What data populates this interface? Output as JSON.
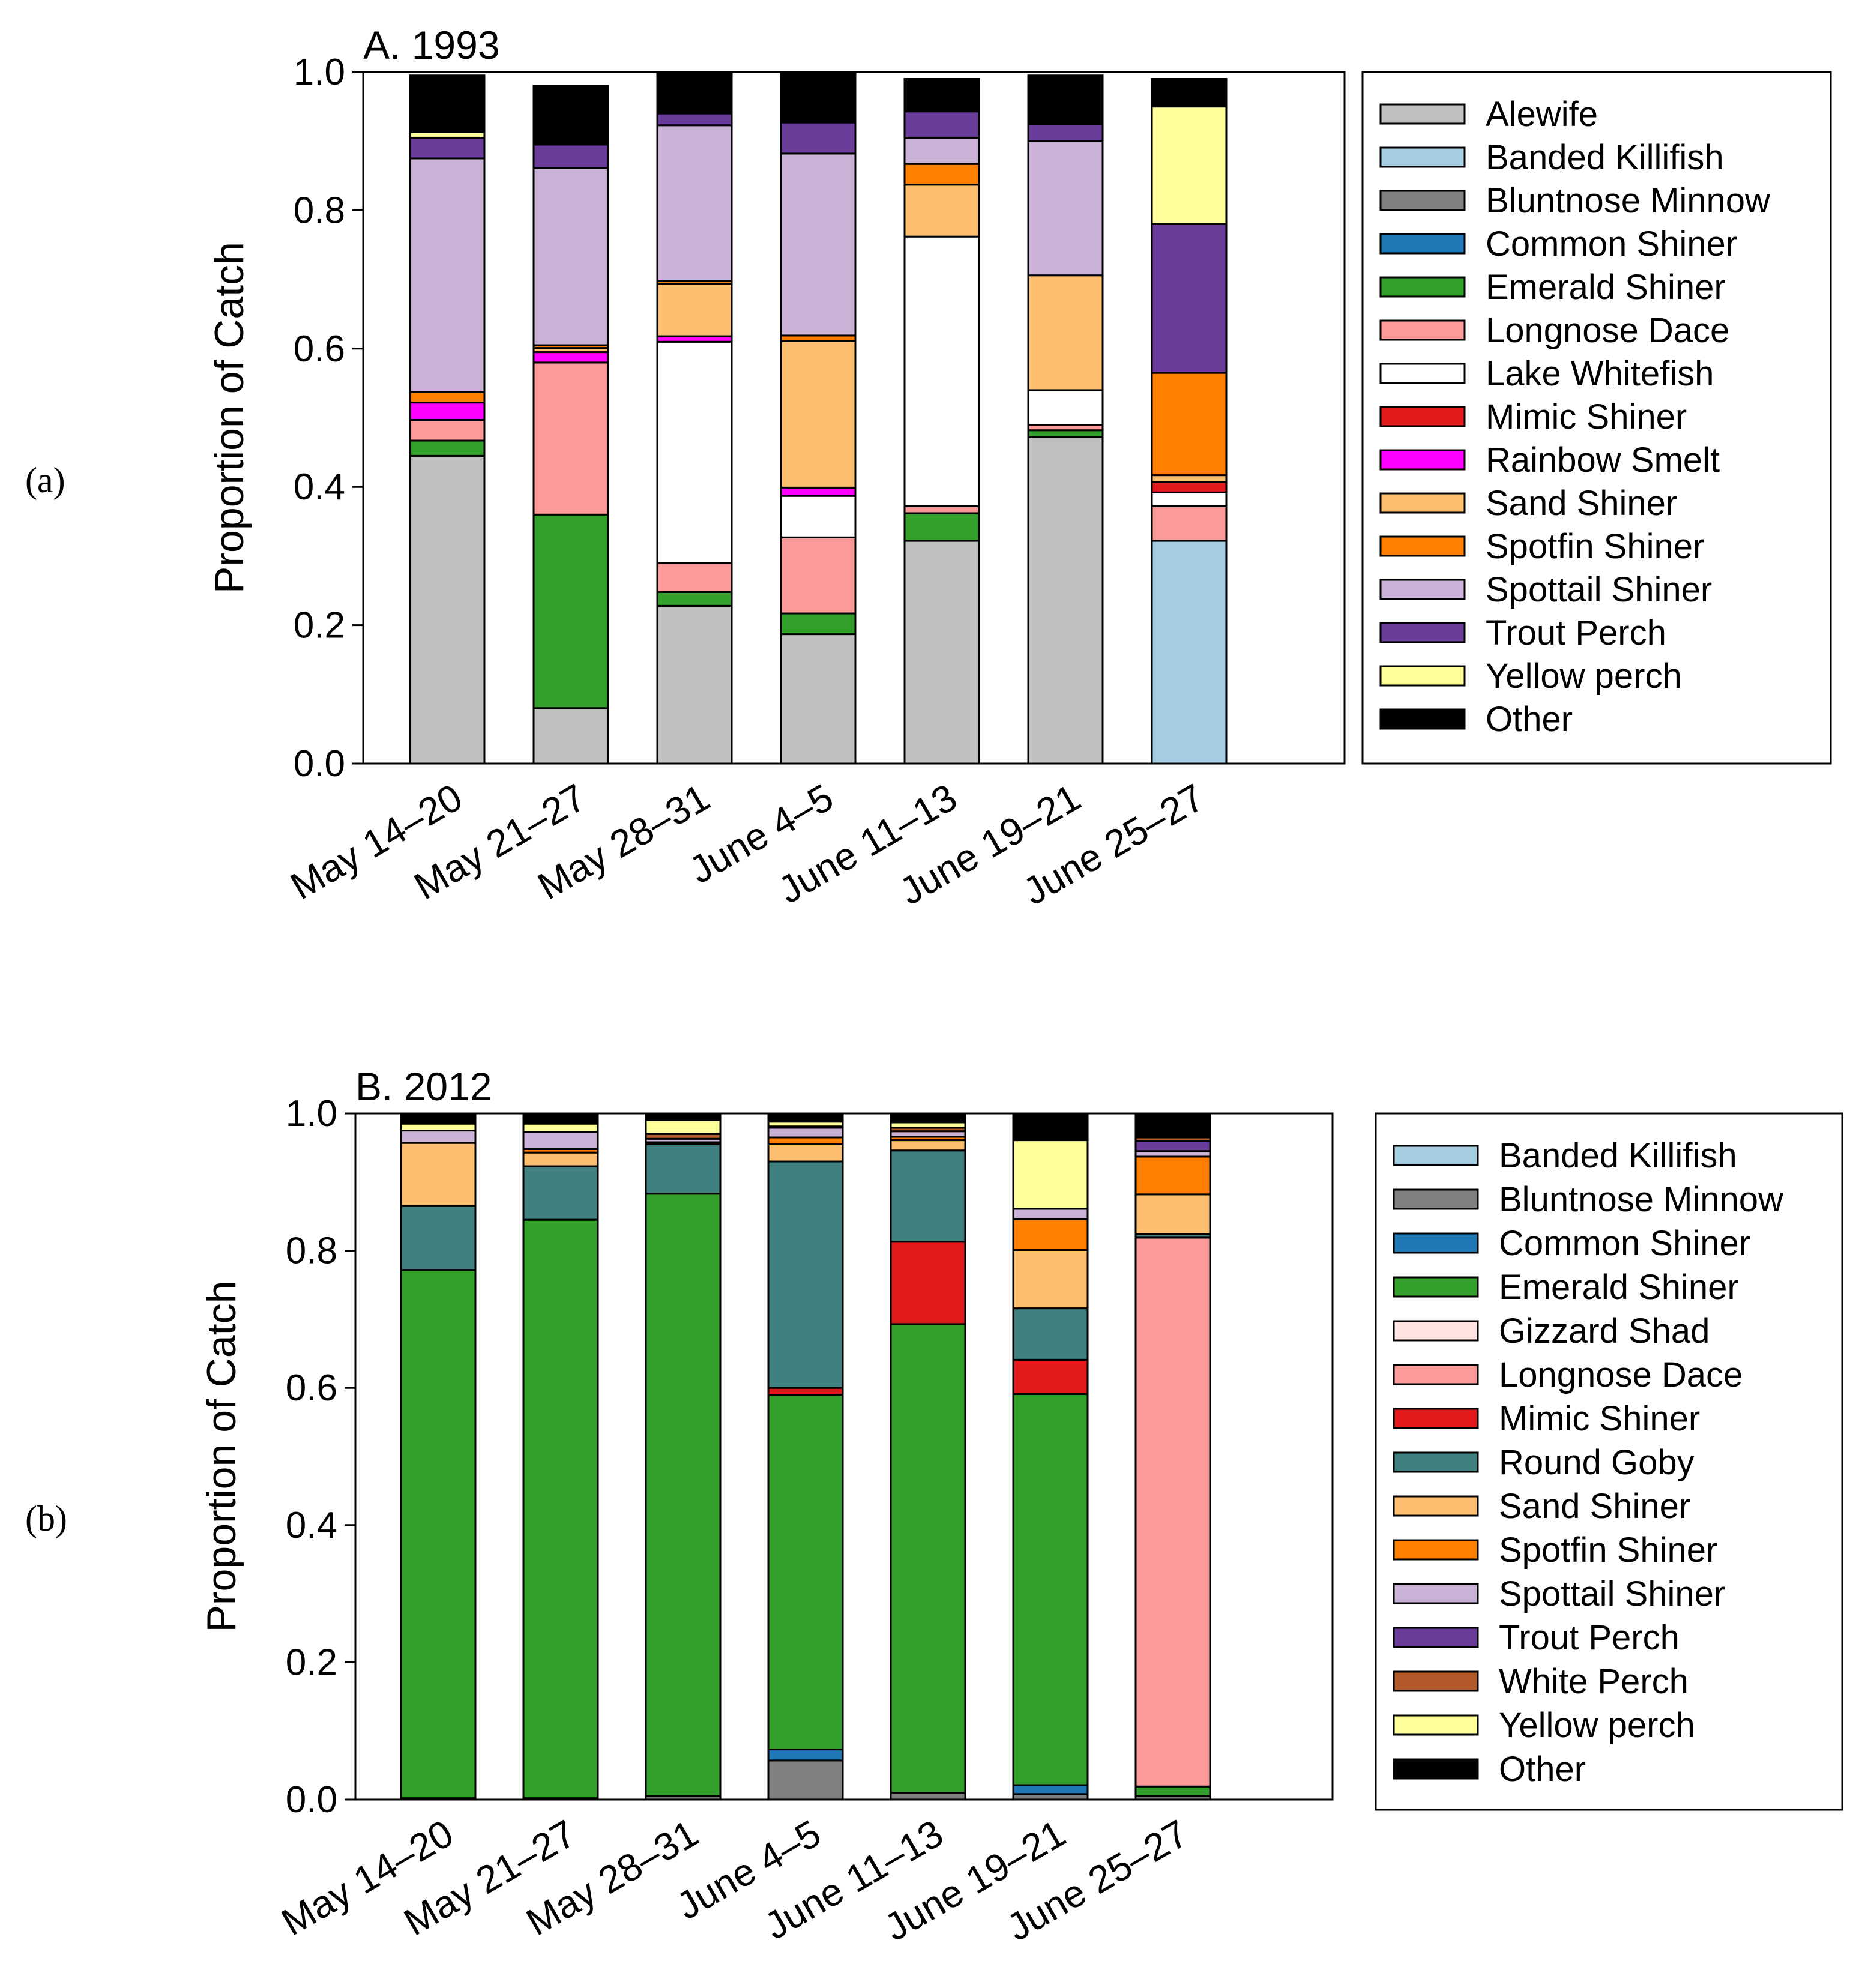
{
  "figure": {
    "panel_labels": [
      "(a)",
      "(b)"
    ],
    "colors": {
      "Alewife": "#c0c0c0",
      "Banded Killifish": "#a6cee3",
      "Bluntnose Minnow": "#808080",
      "Common Shiner": "#1f78b4",
      "Emerald Shiner": "#33a02c",
      "Longnose Dace": "#fb9a99",
      "Lake Whitefish": "#ffffff",
      "Mimic Shiner": "#e31a1c",
      "Rainbow Smelt": "#ff00ff",
      "Sand Shiner": "#fdbf6f",
      "Spotfin Shiner": "#ff7f00",
      "Spottail Shiner": "#cab2d6",
      "Trout Perch": "#6a3d9a",
      "Yellow perch": "#ffff99",
      "Other": "#000000",
      "Gizzard Shad": "#ffe4e1",
      "Round Goby": "#408080",
      "White Perch": "#b15928"
    }
  },
  "chart_data": [
    {
      "type": "bar",
      "stacked": true,
      "title": "A. 1993",
      "xlabel": "",
      "ylabel": "Proportion of Catch",
      "ylim": [
        0,
        1
      ],
      "yticks": [
        "0.0",
        "0.2",
        "0.4",
        "0.6",
        "0.8",
        "1.0"
      ],
      "categories": [
        "May 14–20",
        "May 21–27",
        "May 28–31",
        "June 4–5",
        "June 11–13",
        "June 19–21",
        "June 25–27"
      ],
      "legend": [
        "Alewife",
        "Banded Killifish",
        "Bluntnose Minnow",
        "Common Shiner",
        "Emerald Shiner",
        "Longnose Dace",
        "Lake Whitefish",
        "Mimic Shiner",
        "Rainbow Smelt",
        "Sand Shiner",
        "Spotfin Shiner",
        "Spottail Shiner",
        "Trout Perch",
        "Yellow perch",
        "Other"
      ],
      "series": [
        {
          "name": "Alewife",
          "values": [
            0.445,
            0.08,
            0.228,
            0.187,
            0.322,
            0.472,
            0
          ]
        },
        {
          "name": "Banded Killifish",
          "values": [
            0,
            0,
            0,
            0,
            0,
            0,
            0.322
          ]
        },
        {
          "name": "Bluntnose Minnow",
          "values": [
            0,
            0,
            0,
            0,
            0,
            0,
            0
          ]
        },
        {
          "name": "Common Shiner",
          "values": [
            0,
            0,
            0,
            0,
            0,
            0,
            0
          ]
        },
        {
          "name": "Emerald Shiner",
          "values": [
            0.022,
            0.28,
            0.02,
            0.03,
            0.04,
            0.01,
            0
          ]
        },
        {
          "name": "Longnose Dace",
          "values": [
            0.03,
            0.22,
            0.042,
            0.11,
            0.01,
            0.008,
            0.05
          ]
        },
        {
          "name": "Lake Whitefish",
          "values": [
            0,
            0,
            0.32,
            0.06,
            0.39,
            0.05,
            0.02
          ]
        },
        {
          "name": "Mimic Shiner",
          "values": [
            0,
            0,
            0,
            0,
            0,
            0,
            0.015
          ]
        },
        {
          "name": "Rainbow Smelt",
          "values": [
            0.025,
            0.015,
            0.008,
            0.012,
            0,
            0,
            0
          ]
        },
        {
          "name": "Sand Shiner",
          "values": [
            0,
            0.006,
            0.076,
            0.212,
            0.075,
            0.166,
            0.01
          ]
        },
        {
          "name": "Spotfin Shiner",
          "values": [
            0.015,
            0.004,
            0.004,
            0.008,
            0.03,
            0,
            0.148
          ]
        },
        {
          "name": "Spottail Shiner",
          "values": [
            0.338,
            0.256,
            0.225,
            0.263,
            0.038,
            0.194,
            0
          ]
        },
        {
          "name": "Trout Perch",
          "values": [
            0.03,
            0.034,
            0.017,
            0.045,
            0.038,
            0.025,
            0.215
          ]
        },
        {
          "name": "Yellow perch",
          "values": [
            0.008,
            0,
            0,
            0,
            0,
            0,
            0.17
          ]
        },
        {
          "name": "Other",
          "values": [
            0.082,
            0.085,
            0.06,
            0.073,
            0.047,
            0.07,
            0.04
          ]
        }
      ]
    },
    {
      "type": "bar",
      "stacked": true,
      "title": "B. 2012",
      "xlabel": "",
      "ylabel": "Proportion of Catch",
      "ylim": [
        0,
        1
      ],
      "yticks": [
        "0.0",
        "0.2",
        "0.4",
        "0.6",
        "0.8",
        "1.0"
      ],
      "categories": [
        "May 14–20",
        "May 21–27",
        "May 28–31",
        "June 4–5",
        "June 11–13",
        "June 19–21",
        "June 25–27"
      ],
      "legend": [
        "Banded Killifish",
        "Bluntnose Minnow",
        "Common Shiner",
        "Emerald Shiner",
        "Gizzard Shad",
        "Longnose Dace",
        "Mimic Shiner",
        "Round Goby",
        "Sand Shiner",
        "Spotfin Shiner",
        "Spottail Shiner",
        "Trout Perch",
        "White Perch",
        "Yellow perch",
        "Other"
      ],
      "series": [
        {
          "name": "Banded Killifish",
          "values": [
            0,
            0,
            0,
            0,
            0,
            0,
            0
          ]
        },
        {
          "name": "Bluntnose Minnow",
          "values": [
            0.002,
            0.002,
            0.005,
            0.057,
            0.01,
            0.008,
            0.005
          ]
        },
        {
          "name": "Common Shiner",
          "values": [
            0,
            0,
            0,
            0.016,
            0,
            0.013,
            0
          ]
        },
        {
          "name": "Emerald Shiner",
          "values": [
            0.77,
            0.843,
            0.878,
            0.517,
            0.683,
            0.57,
            0.014
          ]
        },
        {
          "name": "Gizzard Shad",
          "values": [
            0,
            0,
            0,
            0,
            0,
            0,
            0
          ]
        },
        {
          "name": "Longnose Dace",
          "values": [
            0,
            0,
            0,
            0,
            0,
            0,
            0.8
          ]
        },
        {
          "name": "Mimic Shiner",
          "values": [
            0,
            0,
            0,
            0.01,
            0.12,
            0.05,
            0
          ]
        },
        {
          "name": "Round Goby",
          "values": [
            0.093,
            0.078,
            0.072,
            0.33,
            0.133,
            0.075,
            0.005
          ]
        },
        {
          "name": "Sand Shiner",
          "values": [
            0.092,
            0.02,
            0,
            0.025,
            0.015,
            0.085,
            0.058
          ]
        },
        {
          "name": "Spotfin Shiner",
          "values": [
            0,
            0.005,
            0.003,
            0.01,
            0.005,
            0.045,
            0.055
          ]
        },
        {
          "name": "Spottail Shiner",
          "values": [
            0.018,
            0.025,
            0.005,
            0.014,
            0.008,
            0.015,
            0.008
          ]
        },
        {
          "name": "Trout Perch",
          "values": [
            0,
            0,
            0,
            0,
            0,
            0,
            0.015
          ]
        },
        {
          "name": "White Perch",
          "values": [
            0,
            0,
            0.007,
            0.002,
            0.005,
            0,
            0.005
          ]
        },
        {
          "name": "Yellow perch",
          "values": [
            0.01,
            0.012,
            0.02,
            0.007,
            0.008,
            0.1,
            0
          ]
        },
        {
          "name": "Other",
          "values": [
            0.015,
            0.015,
            0.01,
            0.012,
            0.013,
            0.039,
            0.035
          ]
        }
      ]
    }
  ]
}
